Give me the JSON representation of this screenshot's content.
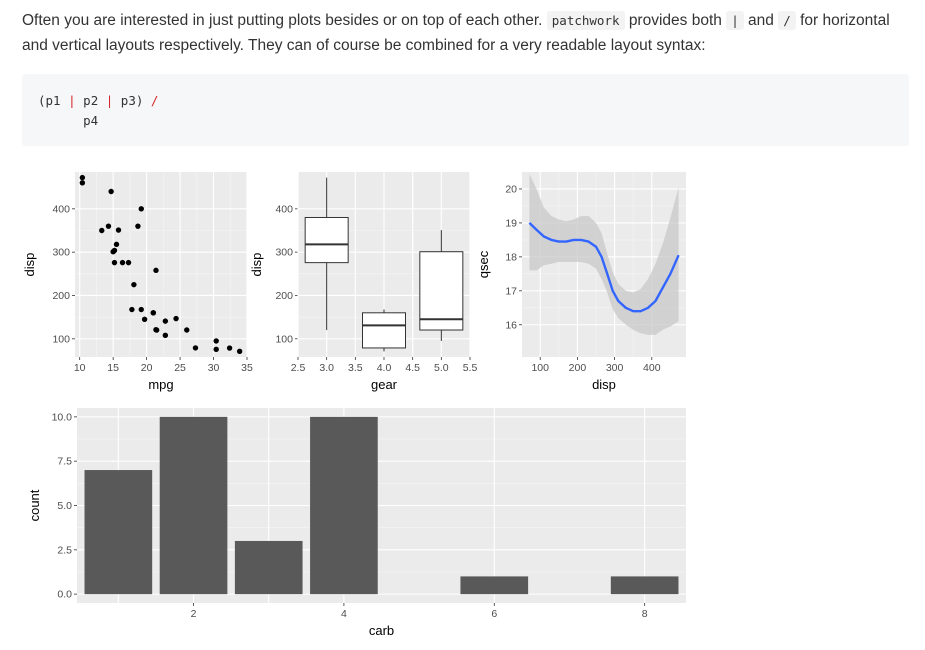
{
  "prose": {
    "text_before": "Often you are interested in just putting plots besides or on top of each other.",
    "code_patchwork": "patchwork",
    "text_provides": "provides both",
    "code_pipe": "|",
    "text_and": "and",
    "code_slash": "/",
    "text_after": "for horizontal and vertical layouts respectively. They can of course be combined for a very readable layout syntax:"
  },
  "code": {
    "line1_open": "(p1 ",
    "line1_op1": "|",
    "line1_p2": " p2 ",
    "line1_op2": "|",
    "line1_p3": " p3) ",
    "line1_op3": "/",
    "line2": "      p4"
  },
  "colors": {
    "panel_bg": "#ebebeb",
    "grid_major": "#ffffff",
    "smooth_line": "#3366ff",
    "ribbon": "#c8c8c8",
    "bar_fill": "#595959",
    "point": "#000000"
  },
  "chart_data": [
    {
      "type": "scatter",
      "xlabel": "mpg",
      "ylabel": "disp",
      "xlim": [
        9.3,
        35.0
      ],
      "ylim": [
        58,
        485
      ],
      "xticks": [
        10,
        15,
        20,
        25,
        30,
        35
      ],
      "yticks": [
        100,
        200,
        300,
        400
      ],
      "grid": true,
      "points": [
        [
          21.0,
          160
        ],
        [
          21.0,
          160
        ],
        [
          22.8,
          108
        ],
        [
          21.4,
          258
        ],
        [
          18.7,
          360
        ],
        [
          18.1,
          225
        ],
        [
          14.3,
          360
        ],
        [
          24.4,
          146.7
        ],
        [
          22.8,
          140.8
        ],
        [
          19.2,
          167.6
        ],
        [
          17.8,
          167.6
        ],
        [
          16.4,
          275.8
        ],
        [
          17.3,
          275.8
        ],
        [
          15.2,
          275.8
        ],
        [
          10.4,
          472
        ],
        [
          10.4,
          460
        ],
        [
          14.7,
          440
        ],
        [
          32.4,
          78.7
        ],
        [
          30.4,
          75.7
        ],
        [
          33.9,
          71.1
        ],
        [
          21.5,
          120.1
        ],
        [
          15.5,
          318
        ],
        [
          15.2,
          304
        ],
        [
          13.3,
          350
        ],
        [
          19.2,
          400
        ],
        [
          27.3,
          79
        ],
        [
          26.0,
          120.3
        ],
        [
          30.4,
          95.1
        ],
        [
          15.8,
          351
        ],
        [
          19.7,
          145
        ],
        [
          15.0,
          301
        ],
        [
          21.4,
          121
        ]
      ]
    },
    {
      "type": "boxplot",
      "xlabel": "gear",
      "ylabel": "disp",
      "xlim": [
        2.5,
        5.5
      ],
      "ylim": [
        58,
        485
      ],
      "xticks": [
        2.5,
        3.0,
        3.5,
        4.0,
        4.5,
        5.0,
        5.5
      ],
      "yticks": [
        100,
        200,
        300,
        400
      ],
      "grid": true,
      "boxes": [
        {
          "x": 3,
          "whisker_low": 120.1,
          "q1": 275.8,
          "median": 318,
          "q3": 380,
          "whisker_high": 472
        },
        {
          "x": 4,
          "whisker_low": 71.1,
          "q1": 78.9,
          "median": 130.9,
          "q3": 160,
          "whisker_high": 167.6
        },
        {
          "x": 5,
          "whisker_low": 95.1,
          "q1": 120.3,
          "median": 145,
          "q3": 301,
          "whisker_high": 351
        }
      ]
    },
    {
      "type": "line",
      "subtype": "smooth",
      "xlabel": "disp",
      "ylabel": "qsec",
      "xlim": [
        51,
        492
      ],
      "ylim": [
        15.05,
        20.5
      ],
      "xticks": [
        100,
        200,
        300,
        400
      ],
      "yticks": [
        16,
        17,
        18,
        19,
        20
      ],
      "grid": true,
      "x": [
        71,
        90,
        110,
        130,
        150,
        170,
        190,
        210,
        230,
        250,
        265,
        280,
        295,
        310,
        330,
        350,
        370,
        390,
        410,
        430,
        450,
        472
      ],
      "y": [
        19.0,
        18.8,
        18.6,
        18.5,
        18.45,
        18.45,
        18.5,
        18.5,
        18.45,
        18.3,
        18.0,
        17.5,
        17.0,
        16.7,
        16.5,
        16.4,
        16.4,
        16.5,
        16.7,
        17.1,
        17.5,
        18.05
      ],
      "ymin": [
        17.6,
        17.6,
        17.75,
        17.8,
        17.85,
        17.85,
        17.85,
        17.85,
        17.8,
        17.65,
        17.35,
        16.95,
        16.45,
        16.2,
        16.0,
        15.85,
        15.75,
        15.7,
        15.7,
        15.85,
        15.95,
        16.1
      ],
      "ymax": [
        20.45,
        20.0,
        19.45,
        19.2,
        19.1,
        19.05,
        19.1,
        19.2,
        19.2,
        19.0,
        18.7,
        18.1,
        17.55,
        17.2,
        17.0,
        16.95,
        17.05,
        17.35,
        17.8,
        18.4,
        19.15,
        20.05
      ]
    },
    {
      "type": "bar",
      "xlabel": "carb",
      "ylabel": "count",
      "xlim": [
        0.45,
        8.55
      ],
      "ylim": [
        -0.5,
        10.5
      ],
      "xticks": [
        2,
        4,
        6,
        8
      ],
      "yticks": [
        0.0,
        2.5,
        5.0,
        7.5,
        10.0
      ],
      "ytick_labels": [
        "0.0",
        "2.5",
        "5.0",
        "7.5",
        "10.0"
      ],
      "grid": true,
      "categories": [
        1,
        2,
        3,
        4,
        6,
        8
      ],
      "values": [
        7,
        10,
        3,
        10,
        1,
        1
      ]
    }
  ]
}
